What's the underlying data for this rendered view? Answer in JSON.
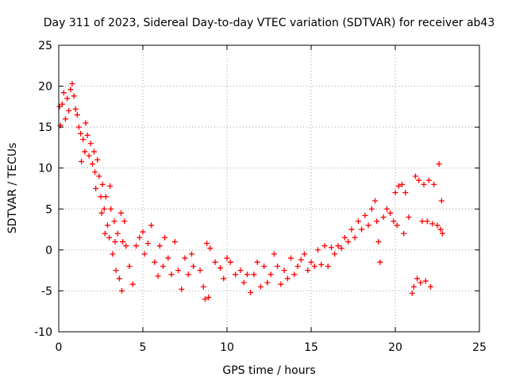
{
  "chart_data": {
    "type": "scatter",
    "title": "Day 311 of 2023, Sidereal Day-to-day VTEC variation (SDTVAR) for receiver ab43",
    "xlabel": "GPS time / hours",
    "ylabel": "SDTVAR / TECUs",
    "xlim": [
      0,
      25
    ],
    "ylim": [
      -10,
      25
    ],
    "xticks": [
      0,
      5,
      10,
      15,
      20,
      25
    ],
    "yticks": [
      -10,
      -5,
      0,
      5,
      10,
      15,
      20,
      25
    ],
    "xtick_labels": [
      "0",
      "5",
      "10",
      "15",
      "20",
      "25"
    ],
    "ytick_labels": [
      "-10",
      "-5",
      "0",
      "5",
      "10",
      "15",
      "20",
      "25"
    ],
    "grid": true,
    "marker": "+",
    "series": [
      {
        "name": "SDTVAR",
        "color": "#ff0000",
        "points": [
          [
            0.05,
            17.5
          ],
          [
            0.1,
            15.2
          ],
          [
            0.2,
            17.8
          ],
          [
            0.3,
            19.2
          ],
          [
            0.4,
            16.0
          ],
          [
            0.5,
            18.5
          ],
          [
            0.6,
            17.0
          ],
          [
            0.7,
            19.6
          ],
          [
            0.8,
            20.3
          ],
          [
            0.9,
            18.8
          ],
          [
            1.0,
            17.2
          ],
          [
            1.1,
            16.5
          ],
          [
            1.2,
            15.0
          ],
          [
            1.3,
            14.2
          ],
          [
            1.35,
            10.8
          ],
          [
            1.45,
            13.5
          ],
          [
            1.55,
            12.0
          ],
          [
            1.6,
            15.5
          ],
          [
            1.7,
            14.0
          ],
          [
            1.8,
            11.5
          ],
          [
            1.9,
            13.0
          ],
          [
            2.0,
            10.5
          ],
          [
            2.1,
            12.0
          ],
          [
            2.15,
            9.5
          ],
          [
            2.2,
            7.5
          ],
          [
            2.3,
            11.0
          ],
          [
            2.4,
            9.0
          ],
          [
            2.5,
            6.5
          ],
          [
            2.55,
            4.5
          ],
          [
            2.6,
            8.0
          ],
          [
            2.7,
            5.0
          ],
          [
            2.75,
            2.0
          ],
          [
            2.8,
            6.5
          ],
          [
            2.9,
            3.0
          ],
          [
            3.0,
            1.5
          ],
          [
            3.05,
            7.8
          ],
          [
            3.1,
            5.0
          ],
          [
            3.2,
            -0.5
          ],
          [
            3.3,
            3.5
          ],
          [
            3.35,
            1.0
          ],
          [
            3.4,
            -2.5
          ],
          [
            3.5,
            2.0
          ],
          [
            3.6,
            -3.5
          ],
          [
            3.7,
            4.5
          ],
          [
            3.75,
            -5.0
          ],
          [
            3.8,
            1.0
          ],
          [
            3.9,
            3.5
          ],
          [
            4.0,
            0.5
          ],
          [
            4.2,
            -2.0
          ],
          [
            4.4,
            -4.2
          ],
          [
            4.6,
            0.5
          ],
          [
            4.8,
            1.5
          ],
          [
            5.0,
            2.2
          ],
          [
            5.1,
            -0.5
          ],
          [
            5.3,
            0.8
          ],
          [
            5.5,
            3.0
          ],
          [
            5.7,
            -1.5
          ],
          [
            5.9,
            -3.2
          ],
          [
            6.0,
            0.5
          ],
          [
            6.2,
            -2.0
          ],
          [
            6.3,
            1.5
          ],
          [
            6.5,
            -1.0
          ],
          [
            6.7,
            -3.0
          ],
          [
            6.9,
            1.0
          ],
          [
            7.1,
            -2.5
          ],
          [
            7.3,
            -4.8
          ],
          [
            7.5,
            -1.0
          ],
          [
            7.7,
            -3.0
          ],
          [
            7.9,
            -0.5
          ],
          [
            8.0,
            -2.0
          ],
          [
            8.4,
            -2.5
          ],
          [
            8.6,
            -4.5
          ],
          [
            8.7,
            -6.0
          ],
          [
            8.8,
            0.8
          ],
          [
            8.9,
            -5.8
          ],
          [
            9.0,
            0.2
          ],
          [
            9.3,
            -1.5
          ],
          [
            9.6,
            -2.2
          ],
          [
            9.8,
            -3.5
          ],
          [
            10.0,
            -1.0
          ],
          [
            10.2,
            -1.5
          ],
          [
            10.5,
            -3.0
          ],
          [
            10.8,
            -2.5
          ],
          [
            11.0,
            -4.0
          ],
          [
            11.2,
            -3.0
          ],
          [
            11.4,
            -5.2
          ],
          [
            11.6,
            -3.0
          ],
          [
            11.8,
            -1.5
          ],
          [
            12.0,
            -4.5
          ],
          [
            12.2,
            -2.0
          ],
          [
            12.4,
            -4.0
          ],
          [
            12.6,
            -3.0
          ],
          [
            12.8,
            -0.5
          ],
          [
            13.0,
            -2.0
          ],
          [
            13.2,
            -4.2
          ],
          [
            13.4,
            -2.5
          ],
          [
            13.6,
            -3.5
          ],
          [
            13.8,
            -1.0
          ],
          [
            14.0,
            -3.0
          ],
          [
            14.2,
            -2.0
          ],
          [
            14.4,
            -1.2
          ],
          [
            14.6,
            -0.5
          ],
          [
            14.8,
            -2.5
          ],
          [
            15.0,
            -1.5
          ],
          [
            15.2,
            -2.0
          ],
          [
            15.4,
            0.0
          ],
          [
            15.6,
            -1.8
          ],
          [
            15.8,
            0.5
          ],
          [
            16.0,
            -2.0
          ],
          [
            16.2,
            0.3
          ],
          [
            16.4,
            -0.5
          ],
          [
            16.6,
            0.5
          ],
          [
            16.8,
            0.2
          ],
          [
            17.0,
            1.5
          ],
          [
            17.2,
            1.0
          ],
          [
            17.4,
            2.5
          ],
          [
            17.6,
            1.5
          ],
          [
            17.8,
            3.5
          ],
          [
            18.0,
            2.5
          ],
          [
            18.2,
            4.2
          ],
          [
            18.4,
            3.0
          ],
          [
            18.6,
            5.0
          ],
          [
            18.8,
            6.0
          ],
          [
            18.9,
            3.5
          ],
          [
            19.0,
            1.0
          ],
          [
            19.1,
            -1.5
          ],
          [
            19.3,
            4.0
          ],
          [
            19.5,
            5.0
          ],
          [
            19.7,
            4.5
          ],
          [
            19.9,
            3.5
          ],
          [
            20.0,
            7.0
          ],
          [
            20.1,
            3.0
          ],
          [
            20.2,
            7.8
          ],
          [
            20.4,
            8.0
          ],
          [
            20.5,
            2.0
          ],
          [
            20.6,
            7.0
          ],
          [
            20.8,
            4.0
          ],
          [
            21.0,
            -5.3
          ],
          [
            21.1,
            -4.5
          ],
          [
            21.2,
            9.0
          ],
          [
            21.3,
            -3.5
          ],
          [
            21.4,
            8.5
          ],
          [
            21.5,
            -4.0
          ],
          [
            21.6,
            3.5
          ],
          [
            21.7,
            8.0
          ],
          [
            21.8,
            -3.8
          ],
          [
            21.9,
            3.5
          ],
          [
            22.0,
            8.5
          ],
          [
            22.1,
            -4.5
          ],
          [
            22.2,
            3.2
          ],
          [
            22.3,
            8.0
          ],
          [
            22.5,
            3.0
          ],
          [
            22.6,
            10.5
          ],
          [
            22.7,
            2.5
          ],
          [
            22.75,
            6.0
          ],
          [
            22.8,
            2.0
          ]
        ]
      }
    ]
  }
}
